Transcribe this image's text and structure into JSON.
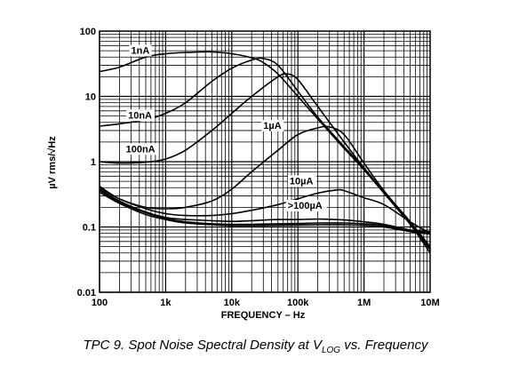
{
  "caption": {
    "prefix": "TPC 9.  Spot Noise Spectral Density at V",
    "subscript": "LOG",
    "suffix": " vs. Frequency"
  },
  "chart_data": {
    "type": "line",
    "title": "",
    "xlabel": "FREQUENCY – Hz",
    "ylabel": "µV rms/√Hz",
    "xscale": "log",
    "yscale": "log",
    "xlim": [
      100,
      10000000
    ],
    "ylim": [
      0.01,
      100
    ],
    "grid": true,
    "x_ticks": [
      {
        "value": 100,
        "label": "100"
      },
      {
        "value": 1000,
        "label": "1k"
      },
      {
        "value": 10000,
        "label": "10k"
      },
      {
        "value": 100000,
        "label": "100k"
      },
      {
        "value": 1000000,
        "label": "1M"
      },
      {
        "value": 10000000,
        "label": "10M"
      }
    ],
    "y_ticks": [
      {
        "value": 0.01,
        "label": "0.01"
      },
      {
        "value": 0.1,
        "label": "0.1"
      },
      {
        "value": 1,
        "label": "1"
      },
      {
        "value": 10,
        "label": "10"
      },
      {
        "value": 100,
        "label": "100"
      }
    ],
    "series": [
      {
        "name": "1nA",
        "x": [
          100,
          200,
          500,
          1000,
          2000,
          5000,
          10000,
          20000,
          30000,
          50000,
          100000,
          200000,
          500000,
          1000000,
          2000000,
          5000000,
          10000000
        ],
        "y": [
          24,
          28,
          40,
          45,
          47,
          48,
          45,
          39,
          33,
          22,
          10,
          4.5,
          1.6,
          0.75,
          0.33,
          0.11,
          0.045
        ]
      },
      {
        "name": "10nA",
        "x": [
          100,
          200,
          500,
          1000,
          2000,
          5000,
          10000,
          20000,
          30000,
          50000,
          100000,
          200000,
          500000,
          1000000,
          2000000,
          5000000,
          10000000
        ],
        "y": [
          3.5,
          3.8,
          4.4,
          5.5,
          8,
          17,
          27,
          36,
          38,
          30,
          12,
          4.8,
          1.7,
          0.8,
          0.34,
          0.11,
          0.04
        ]
      },
      {
        "name": "100nA",
        "x": [
          100,
          200,
          500,
          1000,
          2000,
          5000,
          10000,
          20000,
          50000,
          70000,
          100000,
          200000,
          500000,
          1000000,
          2000000,
          5000000,
          10000000
        ],
        "y": [
          1,
          0.95,
          0.98,
          1.1,
          1.5,
          3,
          5.5,
          10,
          20,
          22,
          18,
          7,
          2,
          0.8,
          0.34,
          0.12,
          0.045
        ]
      },
      {
        "name": "1µA",
        "x": [
          100,
          200,
          500,
          1000,
          2000,
          5000,
          10000,
          20000,
          50000,
          100000,
          200000,
          300000,
          500000,
          1000000,
          2000000,
          5000000,
          10000000
        ],
        "y": [
          0.4,
          0.27,
          0.2,
          0.19,
          0.2,
          0.25,
          0.38,
          0.7,
          1.5,
          2.6,
          3.3,
          3.4,
          2.6,
          0.95,
          0.36,
          0.12,
          0.05
        ]
      },
      {
        "name": "10µA",
        "x": [
          100,
          200,
          500,
          1000,
          2000,
          5000,
          10000,
          20000,
          50000,
          100000,
          200000,
          400000,
          500000,
          700000,
          1000000,
          2000000,
          5000000,
          10000000
        ],
        "y": [
          0.42,
          0.27,
          0.19,
          0.16,
          0.15,
          0.15,
          0.16,
          0.18,
          0.22,
          0.27,
          0.33,
          0.37,
          0.36,
          0.32,
          0.28,
          0.22,
          0.12,
          0.08
        ]
      },
      {
        "name": ">100µA",
        "x": [
          100,
          200,
          500,
          1000,
          2000,
          5000,
          10000,
          20000,
          50000,
          100000,
          200000,
          500000,
          1000000,
          2000000,
          5000000,
          10000000
        ],
        "y": [
          0.38,
          0.25,
          0.17,
          0.14,
          0.13,
          0.125,
          0.122,
          0.125,
          0.13,
          0.13,
          0.132,
          0.128,
          0.12,
          0.11,
          0.09,
          0.085
        ]
      },
      {
        "name": "",
        "x": [
          100,
          200,
          500,
          1000,
          2000,
          5000,
          10000,
          20000,
          50000,
          100000,
          200000,
          500000,
          1000000,
          2000000,
          5000000,
          10000000
        ],
        "y": [
          0.36,
          0.24,
          0.165,
          0.135,
          0.12,
          0.112,
          0.11,
          0.11,
          0.112,
          0.113,
          0.115,
          0.115,
          0.112,
          0.105,
          0.088,
          0.08
        ]
      },
      {
        "name": "",
        "x": [
          100,
          200,
          500,
          1000,
          2000,
          5000,
          10000,
          20000,
          50000,
          100000,
          200000,
          500000,
          1000000,
          2000000,
          5000000,
          10000000
        ],
        "y": [
          0.34,
          0.23,
          0.155,
          0.13,
          0.115,
          0.108,
          0.105,
          0.105,
          0.106,
          0.107,
          0.108,
          0.108,
          0.106,
          0.1,
          0.085,
          0.078
        ]
      }
    ],
    "annotations": [
      {
        "text": "1nA",
        "x": 300,
        "y": 45
      },
      {
        "text": "10nA",
        "x": 270,
        "y": 4.6
      },
      {
        "text": "100nA",
        "x": 250,
        "y": 1.4
      },
      {
        "text": "1µA",
        "x": 30000,
        "y": 3.2
      },
      {
        "text": "10µA",
        "x": 75000,
        "y": 0.45
      },
      {
        "text": ">100µA",
        "x": 70000,
        "y": 0.19
      }
    ]
  }
}
